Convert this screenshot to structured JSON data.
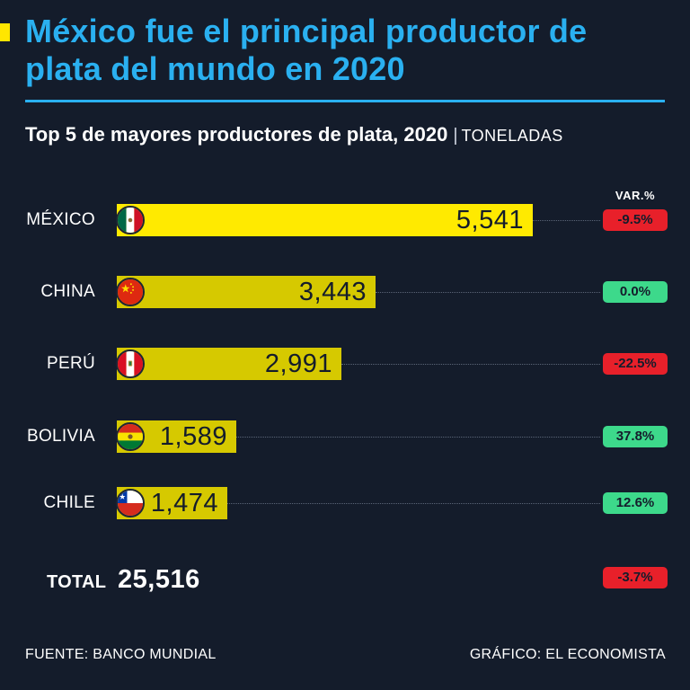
{
  "colors": {
    "background": "#141c2b",
    "title": "#2ab0f0",
    "accent": "#ffe600",
    "bar_highlight": "#ffea00",
    "bar": "#d6c900",
    "negative": "#e8202a",
    "positive": "#3dd98b"
  },
  "header": {
    "title": "México fue el principal productor de plata del mundo en 2020",
    "subtitle": "Top 5 de mayores productores de plata, 2020",
    "subtitle_separator": "|",
    "unit": "TONELADAS"
  },
  "chart_data": {
    "type": "bar",
    "orientation": "horizontal",
    "title": "Top 5 de mayores productores de plata, 2020",
    "unit": "TONELADAS",
    "categories": [
      "MÉXICO",
      "CHINA",
      "PERÚ",
      "BOLIVIA",
      "CHILE"
    ],
    "values": [
      5541,
      3443,
      2991,
      1589,
      1474
    ],
    "value_labels": [
      "5,541",
      "3,443",
      "2,991",
      "1,589",
      "1,474"
    ],
    "flags": [
      "mexico-flag-icon",
      "china-flag-icon",
      "peru-flag-icon",
      "bolivia-flag-icon",
      "chile-flag-icon"
    ],
    "variation_header": "VAR.%",
    "variations": [
      -9.5,
      0.0,
      -22.5,
      37.8,
      12.6
    ],
    "variation_labels": [
      "-9.5%",
      "0.0%",
      "-22.5%",
      "37.8%",
      "12.6%"
    ],
    "total_label": "TOTAL",
    "total_value": "25,516",
    "total_variation": "-3.7%",
    "xlim": [
      0,
      5541
    ],
    "grid": false
  },
  "footer": {
    "source": "FUENTE: BANCO MUNDIAL",
    "credit": "GRÁFICO: EL ECONOMISTA"
  }
}
